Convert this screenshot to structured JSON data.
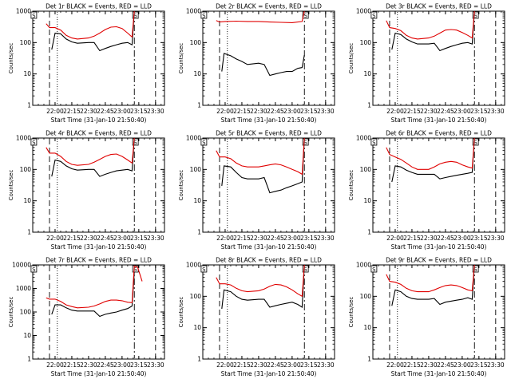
{
  "colors": {
    "events": "#000000",
    "lld": "#e00000",
    "axes": "#000000",
    "background": "#ffffff"
  },
  "chart_data": [
    {
      "type": "line",
      "title": "Det 1r BLACK = Events, RED = LLD",
      "xlabel": "Start Time (31-Jan-10 21:50:40)",
      "ylabel": "Counts/sec",
      "yscale": "log",
      "ylim": [
        1,
        1000
      ],
      "yticks": [
        "1",
        "10",
        "100",
        "1000"
      ],
      "xticks": [
        "22:00",
        "22:15",
        "22:30",
        "22:45",
        "23:00",
        "23:15",
        "23:30"
      ],
      "annotations": [
        "S"
      ],
      "series": [
        {
          "name": "Events",
          "x": [
            "21:57",
            "22:00",
            "22:05",
            "22:10",
            "22:15",
            "22:20",
            "22:30",
            "22:35",
            "22:40",
            "22:45",
            "22:50",
            "22:55",
            "23:00",
            "23:05",
            "23:09",
            "23:11"
          ],
          "y": [
            60,
            200,
            190,
            130,
            105,
            95,
            100,
            100,
            55,
            65,
            75,
            85,
            95,
            100,
            85,
            1000
          ]
        },
        {
          "name": "LLD",
          "x": [
            "21:52",
            "21:55",
            "22:00",
            "22:05",
            "22:10",
            "22:15",
            "22:20",
            "22:30",
            "22:35",
            "22:40",
            "22:45",
            "22:50",
            "22:55",
            "23:00",
            "23:05",
            "23:09",
            "23:11"
          ],
          "y": [
            400,
            300,
            300,
            250,
            170,
            140,
            130,
            140,
            160,
            200,
            260,
            310,
            320,
            280,
            200,
            150,
            1000
          ]
        }
      ]
    },
    {
      "type": "line",
      "title": "Det 2r BLACK = Events, RED = LLD",
      "xlabel": "Start Time (31-Jan-10 21:50:40)",
      "ylabel": "Counts/sec",
      "yscale": "log",
      "ylim": [
        1,
        1000
      ],
      "yticks": [
        "1",
        "10",
        "100",
        "1000"
      ],
      "xticks": [
        "22:00",
        "22:15",
        "22:30",
        "22:45",
        "23:00",
        "23:15",
        "23:30"
      ],
      "annotations": [
        "S"
      ],
      "series": [
        {
          "name": "Events",
          "x": [
            "21:57",
            "21:59",
            "22:05",
            "22:10",
            "22:15",
            "22:20",
            "22:30",
            "22:35",
            "22:40",
            "22:45",
            "22:50",
            "22:55",
            "23:00",
            "23:05",
            "23:09",
            "23:11"
          ],
          "y": [
            12,
            45,
            38,
            30,
            25,
            20,
            22,
            20,
            9,
            10,
            11,
            12,
            12,
            15,
            16,
            40
          ]
        },
        {
          "name": "LLD",
          "x": [
            "21:52",
            "21:55",
            "22:00",
            "22:10",
            "22:20",
            "22:30",
            "22:40",
            "22:50",
            "23:00",
            "23:09",
            "23:11"
          ],
          "y": [
            500,
            450,
            470,
            480,
            470,
            470,
            450,
            440,
            430,
            470,
            1000
          ]
        }
      ]
    },
    {
      "type": "line",
      "title": "Det 3r BLACK = Events, RED = LLD",
      "xlabel": "Start Time (31-Jan-10 21:50:40)",
      "ylabel": "Counts/sec",
      "yscale": "log",
      "ylim": [
        1,
        1000
      ],
      "yticks": [
        "1",
        "10",
        "100",
        "1000"
      ],
      "xticks": [
        "22:00",
        "22:15",
        "22:30",
        "22:45",
        "23:00",
        "23:15",
        "23:30"
      ],
      "annotations": [
        "S"
      ],
      "series": [
        {
          "name": "Events",
          "x": [
            "21:57",
            "22:00",
            "22:05",
            "22:10",
            "22:15",
            "22:20",
            "22:30",
            "22:35",
            "22:40",
            "22:45",
            "22:50",
            "22:55",
            "23:00",
            "23:05",
            "23:09",
            "23:11"
          ],
          "y": [
            60,
            200,
            180,
            130,
            105,
            90,
            90,
            95,
            55,
            65,
            75,
            85,
            95,
            100,
            90,
            1000
          ]
        },
        {
          "name": "LLD",
          "x": [
            "21:52",
            "21:55",
            "22:00",
            "22:05",
            "22:10",
            "22:15",
            "22:20",
            "22:30",
            "22:35",
            "22:40",
            "22:45",
            "22:50",
            "22:55",
            "23:00",
            "23:05",
            "23:09",
            "23:11"
          ],
          "y": [
            500,
            300,
            280,
            240,
            170,
            140,
            130,
            140,
            160,
            200,
            250,
            260,
            250,
            210,
            170,
            140,
            1000
          ]
        }
      ]
    },
    {
      "type": "line",
      "title": "Det 4r BLACK = Events, RED = LLD",
      "xlabel": "Start Time (31-Jan-10 21:50:40)",
      "ylabel": "Counts/sec",
      "yscale": "log",
      "ylim": [
        1,
        1000
      ],
      "yticks": [
        "1",
        "10",
        "100",
        "1000"
      ],
      "xticks": [
        "22:00",
        "22:15",
        "22:30",
        "22:45",
        "23:00",
        "23:15",
        "23:30"
      ],
      "annotations": [
        "S"
      ],
      "series": [
        {
          "name": "Events",
          "x": [
            "21:57",
            "22:00",
            "22:05",
            "22:10",
            "22:15",
            "22:20",
            "22:30",
            "22:35",
            "22:40",
            "22:45",
            "22:50",
            "22:55",
            "23:00",
            "23:05",
            "23:09",
            "23:11"
          ],
          "y": [
            60,
            200,
            180,
            130,
            105,
            95,
            100,
            100,
            60,
            70,
            80,
            90,
            95,
            100,
            90,
            1000
          ]
        },
        {
          "name": "LLD",
          "x": [
            "21:52",
            "21:55",
            "22:00",
            "22:05",
            "22:10",
            "22:15",
            "22:20",
            "22:30",
            "22:35",
            "22:40",
            "22:45",
            "22:50",
            "22:55",
            "23:00",
            "23:05",
            "23:09",
            "23:11"
          ],
          "y": [
            500,
            330,
            330,
            260,
            180,
            145,
            135,
            145,
            170,
            210,
            260,
            300,
            310,
            260,
            200,
            160,
            1000
          ]
        }
      ]
    },
    {
      "type": "line",
      "title": "Det 5r BLACK = Events, RED = LLD",
      "xlabel": "Start Time (31-Jan-10 21:50:40)",
      "ylabel": "Counts/sec",
      "yscale": "log",
      "ylim": [
        1,
        1000
      ],
      "yticks": [
        "1",
        "10",
        "100",
        "1000"
      ],
      "xticks": [
        "22:00",
        "22:15",
        "22:30",
        "22:45",
        "23:00",
        "23:15",
        "23:30"
      ],
      "annotations": [
        "S"
      ],
      "series": [
        {
          "name": "Events",
          "x": [
            "21:57",
            "21:59",
            "22:05",
            "22:10",
            "22:15",
            "22:20",
            "22:30",
            "22:35",
            "22:40",
            "22:45",
            "22:50",
            "22:55",
            "23:00",
            "23:05",
            "23:09",
            "23:11"
          ],
          "y": [
            30,
            130,
            120,
            80,
            55,
            50,
            50,
            55,
            18,
            20,
            22,
            26,
            30,
            35,
            40,
            1000
          ]
        },
        {
          "name": "LLD",
          "x": [
            "21:52",
            "21:55",
            "22:00",
            "22:05",
            "22:10",
            "22:15",
            "22:20",
            "22:30",
            "22:35",
            "22:40",
            "22:45",
            "22:50",
            "22:55",
            "23:00",
            "23:05",
            "23:09",
            "23:11"
          ],
          "y": [
            400,
            250,
            250,
            220,
            160,
            130,
            120,
            120,
            130,
            140,
            150,
            140,
            120,
            100,
            85,
            70,
            1000
          ]
        }
      ]
    },
    {
      "type": "line",
      "title": "Det 6r BLACK = Events, RED = LLD",
      "xlabel": "Start Time (31-Jan-10 21:50:40)",
      "ylabel": "Counts/sec",
      "yscale": "log",
      "ylim": [
        1,
        1000
      ],
      "yticks": [
        "1",
        "10",
        "100",
        "1000"
      ],
      "xticks": [
        "22:00",
        "22:15",
        "22:30",
        "22:45",
        "23:00",
        "23:15",
        "23:30"
      ],
      "annotations": [
        "S"
      ],
      "series": [
        {
          "name": "Events",
          "x": [
            "21:57",
            "22:00",
            "22:05",
            "22:10",
            "22:15",
            "22:20",
            "22:30",
            "22:35",
            "22:40",
            "22:45",
            "22:50",
            "22:55",
            "23:00",
            "23:05",
            "23:09",
            "23:11"
          ],
          "y": [
            40,
            130,
            120,
            95,
            80,
            70,
            70,
            70,
            50,
            55,
            60,
            65,
            70,
            75,
            80,
            1000
          ]
        },
        {
          "name": "LLD",
          "x": [
            "21:52",
            "21:55",
            "22:00",
            "22:05",
            "22:10",
            "22:15",
            "22:20",
            "22:30",
            "22:35",
            "22:40",
            "22:45",
            "22:50",
            "22:55",
            "23:00",
            "23:05",
            "23:09",
            "23:11"
          ],
          "y": [
            500,
            300,
            250,
            210,
            160,
            120,
            100,
            100,
            120,
            150,
            170,
            180,
            170,
            140,
            120,
            110,
            1000
          ]
        }
      ]
    },
    {
      "type": "line",
      "title": "Det 7r BLACK = Events, RED = LLD",
      "xlabel": "Start Time (31-Jan-10 21:50:40)",
      "ylabel": "Counts/sec",
      "yscale": "log",
      "ylim": [
        1,
        10000
      ],
      "yticks": [
        "1",
        "10",
        "100",
        "1000",
        "10000"
      ],
      "xticks": [
        "22:00",
        "22:15",
        "22:30",
        "22:45",
        "23:00",
        "23:15",
        "23:30"
      ],
      "annotations": [
        "S"
      ],
      "series": [
        {
          "name": "Events",
          "x": [
            "21:57",
            "22:00",
            "22:05",
            "22:10",
            "22:15",
            "22:20",
            "22:30",
            "22:35",
            "22:40",
            "22:45",
            "22:50",
            "22:55",
            "23:00",
            "23:05",
            "23:09",
            "23:11"
          ],
          "y": [
            80,
            200,
            200,
            150,
            120,
            110,
            110,
            110,
            65,
            80,
            90,
            100,
            120,
            140,
            180,
            5000
          ]
        },
        {
          "name": "LLD",
          "x": [
            "21:52",
            "21:55",
            "22:00",
            "22:05",
            "22:10",
            "22:15",
            "22:20",
            "22:30",
            "22:35",
            "22:40",
            "22:45",
            "22:50",
            "22:55",
            "23:00",
            "23:05",
            "23:09",
            "23:11",
            "23:14",
            "23:18"
          ],
          "y": [
            400,
            350,
            350,
            280,
            200,
            170,
            150,
            160,
            180,
            220,
            280,
            320,
            320,
            300,
            260,
            250,
            9000,
            8000,
            2000
          ]
        }
      ]
    },
    {
      "type": "line",
      "title": "Det 8r BLACK = Events, RED = LLD",
      "xlabel": "Start Time (31-Jan-10 21:50:40)",
      "ylabel": "Counts/sec",
      "yscale": "log",
      "ylim": [
        1,
        1000
      ],
      "yticks": [
        "1",
        "10",
        "100",
        "1000"
      ],
      "xticks": [
        "22:00",
        "22:15",
        "22:30",
        "22:45",
        "23:00",
        "23:15",
        "23:30"
      ],
      "annotations": [
        "S"
      ],
      "series": [
        {
          "name": "Events",
          "x": [
            "21:57",
            "21:59",
            "22:05",
            "22:10",
            "22:15",
            "22:20",
            "22:30",
            "22:35",
            "22:40",
            "22:45",
            "22:50",
            "22:55",
            "23:00",
            "23:05",
            "23:09",
            "23:11"
          ],
          "y": [
            40,
            160,
            140,
            100,
            80,
            75,
            80,
            80,
            45,
            50,
            55,
            60,
            65,
            55,
            45,
            1000
          ]
        },
        {
          "name": "LLD",
          "x": [
            "21:52",
            "21:55",
            "22:00",
            "22:05",
            "22:10",
            "22:15",
            "22:20",
            "22:30",
            "22:35",
            "22:40",
            "22:45",
            "22:50",
            "22:55",
            "23:00",
            "23:05",
            "23:09",
            "23:11"
          ],
          "y": [
            400,
            250,
            250,
            230,
            180,
            150,
            140,
            150,
            170,
            210,
            240,
            230,
            200,
            160,
            120,
            100,
            1000
          ]
        }
      ]
    },
    {
      "type": "line",
      "title": "Det 9r BLACK = Events, RED = LLD",
      "xlabel": "Start Time (31-Jan-10 21:50:40)",
      "ylabel": "Counts/sec",
      "yscale": "log",
      "ylim": [
        1,
        1000
      ],
      "yticks": [
        "1",
        "10",
        "100",
        "1000"
      ],
      "xticks": [
        "22:00",
        "22:15",
        "22:30",
        "22:45",
        "23:00",
        "23:15",
        "23:30"
      ],
      "annotations": [
        "S"
      ],
      "series": [
        {
          "name": "Events",
          "x": [
            "21:57",
            "22:00",
            "22:05",
            "22:10",
            "22:15",
            "22:20",
            "22:30",
            "22:35",
            "22:40",
            "22:45",
            "22:50",
            "22:55",
            "23:00",
            "23:05",
            "23:09",
            "23:11"
          ],
          "y": [
            50,
            160,
            140,
            100,
            85,
            80,
            80,
            85,
            55,
            65,
            70,
            75,
            80,
            90,
            80,
            1000
          ]
        },
        {
          "name": "LLD",
          "x": [
            "21:52",
            "21:55",
            "22:00",
            "22:05",
            "22:10",
            "22:15",
            "22:20",
            "22:30",
            "22:35",
            "22:40",
            "22:45",
            "22:50",
            "22:55",
            "23:00",
            "23:05",
            "23:09",
            "23:11"
          ],
          "y": [
            500,
            300,
            280,
            240,
            180,
            150,
            140,
            140,
            160,
            190,
            220,
            230,
            220,
            190,
            160,
            150,
            1000
          ]
        }
      ]
    }
  ]
}
